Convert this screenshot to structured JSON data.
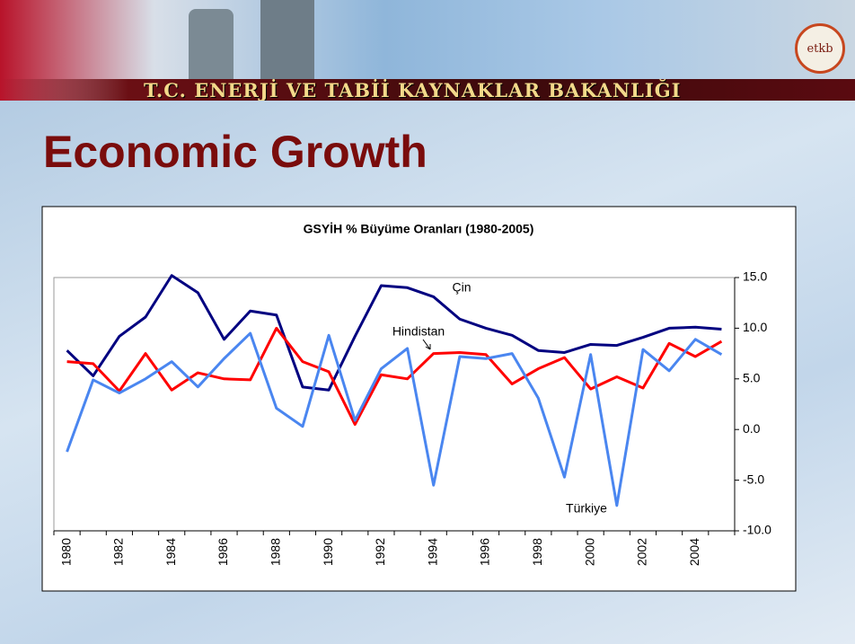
{
  "header": {
    "ministry": "T.C. ENERJİ VE TABİİ KAYNAKLAR BAKANLIĞI",
    "logo": "etkb"
  },
  "slide_title": "Economic Growth",
  "chart_data": {
    "type": "line",
    "title": "GSYİH % Büyüme Oranları (1980-2005)",
    "categories": [
      "1980",
      null,
      "1982",
      null,
      "1984",
      null,
      "1986",
      null,
      "1988",
      null,
      "1990",
      null,
      "1992",
      null,
      "1994",
      null,
      "1996",
      null,
      "1998",
      null,
      "2000",
      null,
      "2002",
      null,
      "2004",
      null
    ],
    "series": [
      {
        "name": "Çin",
        "color": "#000080",
        "values": [
          7.8,
          5.3,
          9.2,
          11.1,
          15.2,
          13.5,
          8.9,
          11.7,
          11.3,
          4.2,
          3.9,
          9.2,
          14.2,
          14.0,
          13.1,
          10.9,
          10.0,
          9.3,
          7.8,
          7.6,
          8.4,
          8.3,
          9.1,
          10.0,
          10.1,
          9.9
        ]
      },
      {
        "name": "Hindistan",
        "color": "#ff0000",
        "values": [
          6.7,
          6.5,
          3.8,
          7.5,
          3.9,
          5.6,
          5.0,
          4.9,
          10.0,
          6.7,
          5.7,
          0.5,
          5.4,
          5.0,
          7.5,
          7.6,
          7.4,
          4.5,
          6.0,
          7.1,
          4.0,
          5.2,
          4.1,
          8.5,
          7.2,
          8.7
        ]
      },
      {
        "name": "Türkiye",
        "color": "#4a86f0",
        "values": [
          -2.2,
          4.9,
          3.6,
          5.0,
          6.7,
          4.2,
          7.0,
          9.5,
          2.1,
          0.3,
          9.3,
          0.9,
          6.0,
          8.0,
          -5.5,
          7.2,
          7.0,
          7.5,
          3.1,
          -4.7,
          7.4,
          -7.5,
          7.9,
          5.8,
          8.9,
          7.4
        ]
      }
    ],
    "ylim": [
      -10,
      15
    ],
    "yticks": [
      {
        "value": -10,
        "label": "-10.0"
      },
      {
        "value": -5,
        "label": "-5.0"
      },
      {
        "value": 0,
        "label": "0.0"
      },
      {
        "value": 5,
        "label": "5.0"
      },
      {
        "value": 10,
        "label": "10.0"
      },
      {
        "value": 15,
        "label": "15.0"
      }
    ],
    "y_axis_side": "right",
    "grid": false
  }
}
